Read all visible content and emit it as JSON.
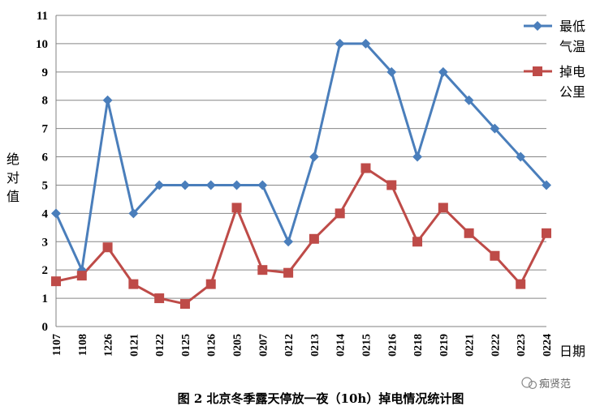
{
  "chart_data": {
    "type": "line",
    "categories": [
      "1107",
      "1108",
      "1226",
      "0121",
      "0122",
      "0125",
      "0126",
      "0205",
      "0207",
      "0212",
      "0213",
      "0214",
      "0215",
      "0216",
      "0218",
      "0219",
      "0221",
      "0222",
      "0223",
      "0224"
    ],
    "series": [
      {
        "name": "最低气温",
        "name_lines": [
          "最低",
          "气温"
        ],
        "color": "#4a7ebb",
        "marker": "diamond",
        "values": [
          4,
          2,
          8,
          4,
          5,
          5,
          5,
          5,
          5,
          3,
          6,
          10,
          10,
          9,
          6,
          9,
          8,
          7,
          6,
          5
        ]
      },
      {
        "name": "掉电公里",
        "name_lines": [
          "掉电",
          "公里"
        ],
        "color": "#be4b48",
        "marker": "square",
        "values": [
          1.6,
          1.8,
          2.8,
          1.5,
          1.0,
          0.8,
          1.5,
          4.2,
          2.0,
          1.9,
          3.1,
          4.0,
          5.6,
          5.0,
          3.0,
          4.2,
          3.3,
          2.5,
          1.5,
          3.3
        ]
      }
    ],
    "xlabel": "日期",
    "ylabel": "绝对值",
    "ylabel_chars": [
      "绝",
      "对",
      "值"
    ],
    "ylim": [
      0,
      11
    ],
    "yticks": [
      0,
      1,
      2,
      3,
      4,
      5,
      6,
      7,
      8,
      9,
      10,
      11
    ],
    "grid": true,
    "legend_position": "top-right",
    "caption": "图 2  北京冬季露天停放一夜（10h）掉电情况统计图"
  },
  "watermark": "痴贤范"
}
